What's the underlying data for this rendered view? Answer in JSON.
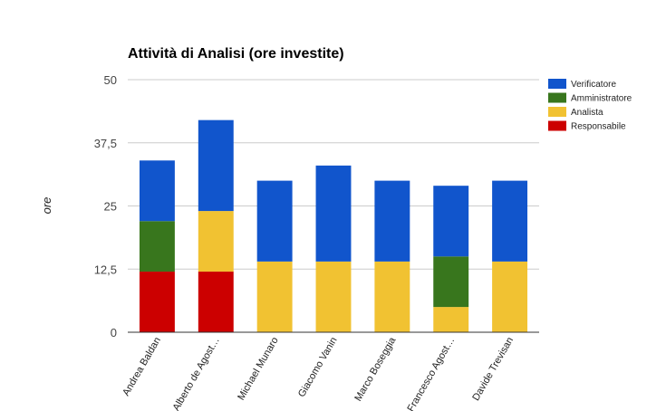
{
  "chart_data": {
    "type": "bar",
    "stacked": true,
    "title": "Attività di Analisi (ore investite)",
    "xlabel": "",
    "ylabel": "ore",
    "ylim": [
      0,
      50
    ],
    "yticks": [
      "0",
      "12,5",
      "25",
      "37,5",
      "50"
    ],
    "grid": true,
    "legend_position": "right",
    "categories": [
      "Andrea Baldan",
      "Alberto de Agost…",
      "Michael Munaro",
      "Giacomo Vanin",
      "Marco Boseggia",
      "Francesco Agost…",
      "Davide Trevisan"
    ],
    "series": [
      {
        "name": "Responsabile",
        "color": "#cc0000",
        "values": [
          12,
          12,
          0,
          0,
          0,
          0,
          0
        ]
      },
      {
        "name": "Analista",
        "color": "#f1c232",
        "values": [
          0,
          12,
          14,
          14,
          14,
          5,
          14
        ]
      },
      {
        "name": "Amministratore",
        "color": "#38761d",
        "values": [
          10,
          0,
          0,
          0,
          0,
          10,
          0
        ]
      },
      {
        "name": "Verificatore",
        "color": "#1155cc",
        "values": [
          12,
          18,
          16,
          19,
          16,
          14,
          16
        ]
      }
    ],
    "legend_order": [
      "Verificatore",
      "Amministratore",
      "Analista",
      "Responsabile"
    ]
  }
}
